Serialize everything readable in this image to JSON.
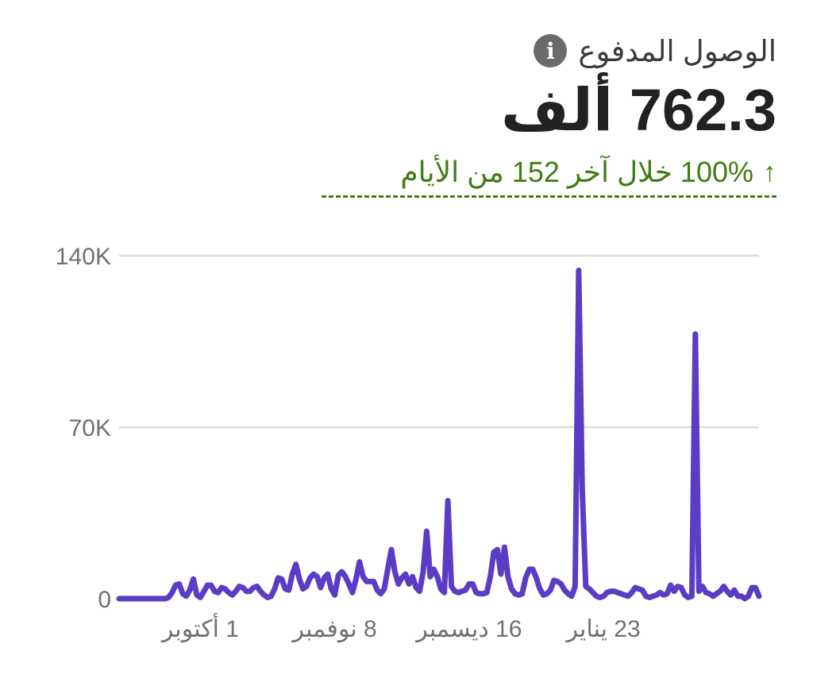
{
  "header": {
    "metric_label": "الوصول المدفوع",
    "metric_value": "762.3 ألف",
    "change_text": "100% خلال آخر 152 من الأيام",
    "change_arrow": "↑",
    "info_icon": "i"
  },
  "colors": {
    "line": "#5b3cc4",
    "positive": "#3f7d12",
    "grid": "#dcdcdc",
    "axis_text": "#707070"
  },
  "chart_data": {
    "type": "line",
    "yticks": [
      {
        "value": 0,
        "label": "0"
      },
      {
        "value": 70000,
        "label": "70K"
      },
      {
        "value": 140000,
        "label": "140K"
      }
    ],
    "ylim": [
      0,
      140000
    ],
    "xticks": [
      {
        "index": 23,
        "label": "1 أكتوبر"
      },
      {
        "index": 61,
        "label": "8 نوفمبر"
      },
      {
        "index": 99,
        "label": "16 ديسمبر"
      },
      {
        "index": 137,
        "label": "23 يناير"
      }
    ],
    "grid": true,
    "series": [
      {
        "values": [
          0,
          0,
          0,
          0,
          0,
          0,
          0,
          0,
          0,
          0,
          0,
          0,
          0,
          0,
          500,
          2500,
          5500,
          6000,
          2000,
          1000,
          3500,
          8000,
          1500,
          500,
          3000,
          5500,
          5500,
          3000,
          2500,
          4500,
          4000,
          2500,
          1500,
          3000,
          5000,
          4500,
          3000,
          3000,
          4500,
          5000,
          3000,
          1500,
          500,
          1000,
          4000,
          8500,
          8000,
          4000,
          3500,
          10000,
          14000,
          8000,
          4000,
          5000,
          8500,
          10000,
          9000,
          4500,
          8500,
          10000,
          4000,
          1500,
          9500,
          11000,
          9000,
          6000,
          2500,
          8000,
          15000,
          9000,
          7000,
          7000,
          7000,
          3500,
          2000,
          4000,
          12000,
          20000,
          11000,
          6000,
          8500,
          10000,
          6000,
          9000,
          4500,
          3000,
          11000,
          27500,
          9000,
          12000,
          9000,
          4000,
          2500,
          40000,
          5000,
          3000,
          2500,
          3000,
          3500,
          6000,
          6000,
          2500,
          2000,
          2000,
          2500,
          9000,
          19000,
          20000,
          10000,
          21000,
          9000,
          4000,
          2000,
          1500,
          2000,
          8500,
          12000,
          12000,
          8500,
          4000,
          1500,
          2000,
          3500,
          7500,
          7000,
          6000,
          3500,
          2000,
          1000,
          5000,
          134000,
          45000,
          5000,
          4000,
          2500,
          1000,
          500,
          1000,
          2500,
          3000,
          3000,
          2500,
          2000,
          1500,
          1000,
          2500,
          4500,
          4000,
          3500,
          1000,
          500,
          1000,
          1500,
          2500,
          1500,
          2000,
          5500,
          3000,
          5000,
          4500,
          1500,
          500,
          1000,
          108000,
          3000,
          5000,
          2500,
          2000,
          1000,
          2000,
          3000,
          5000,
          3000,
          1500,
          3500,
          1000,
          1000,
          0,
          1000,
          4500,
          4500,
          1000
        ]
      }
    ]
  }
}
